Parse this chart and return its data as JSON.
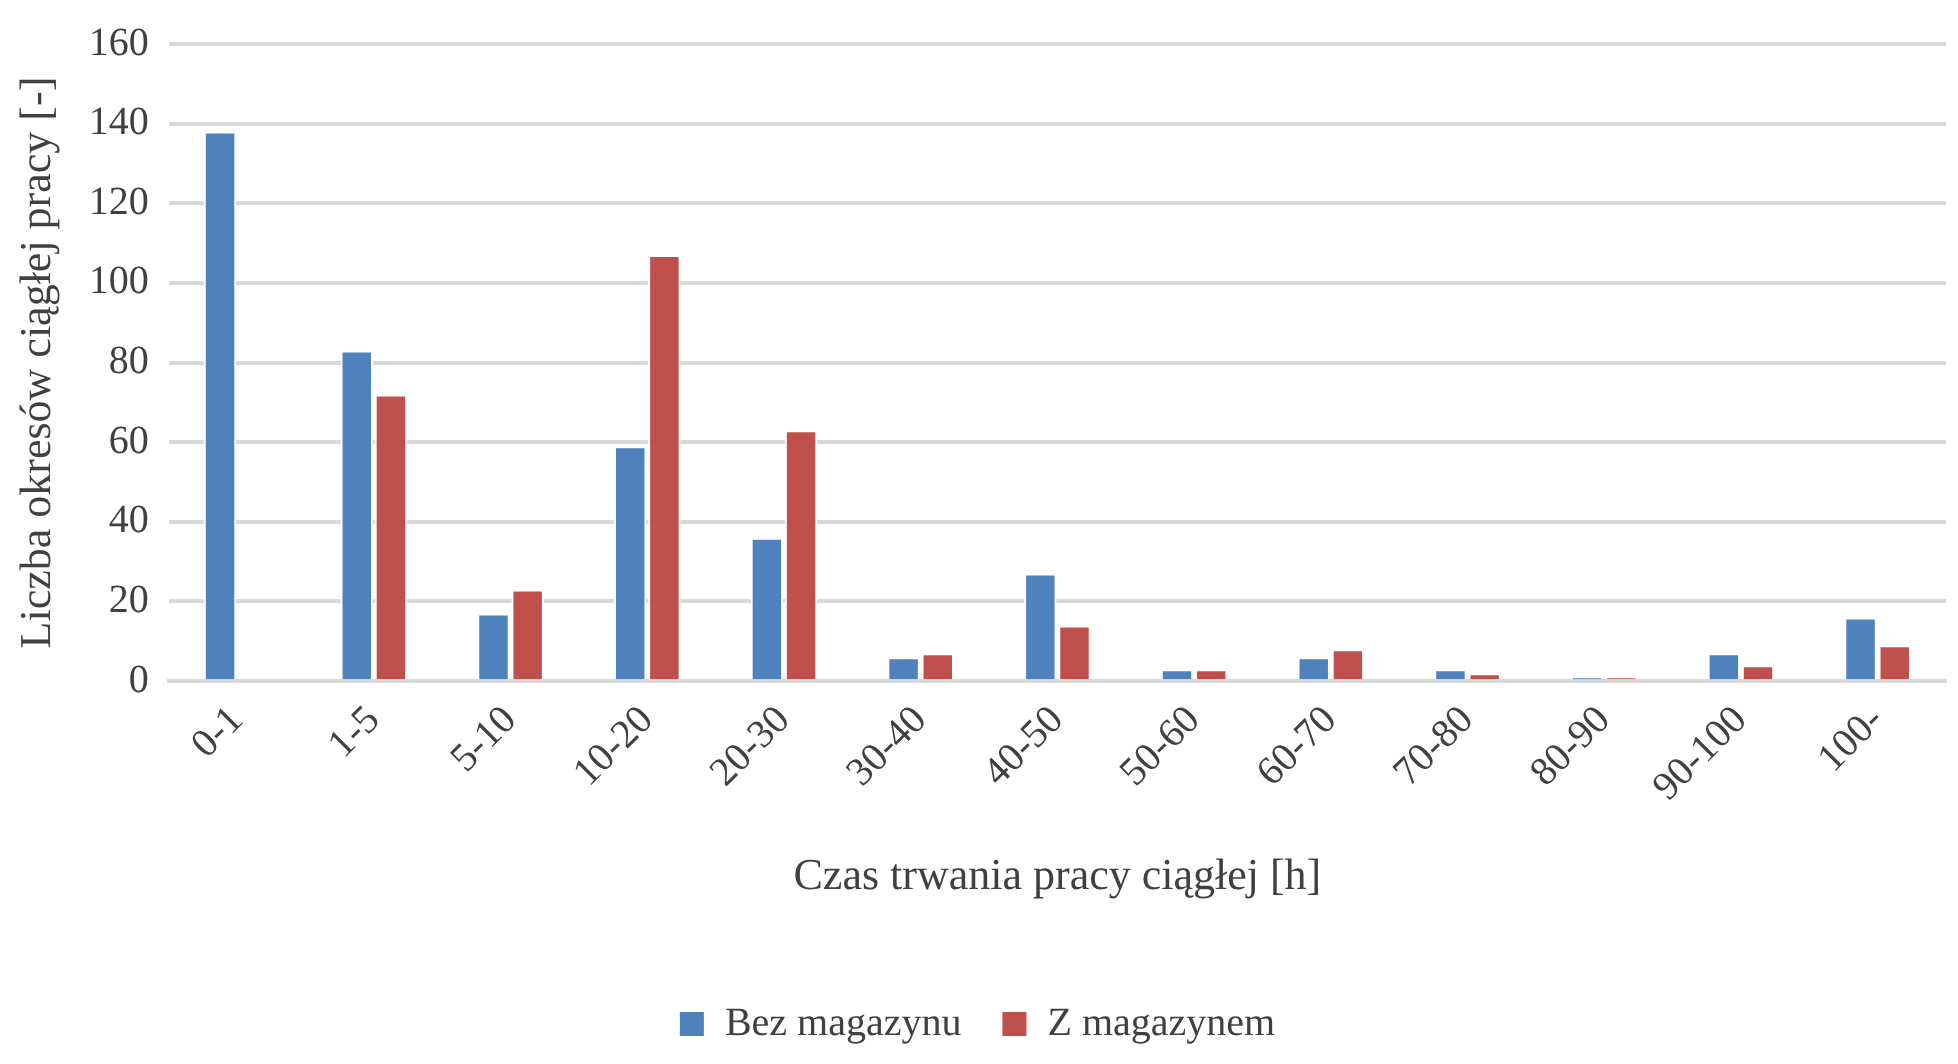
{
  "chart_data": {
    "type": "bar",
    "xlabel": "Czas trwania pracy ciągłej [h]",
    "ylabel": "Liczba okresów ciągłej pracy [-]",
    "categories": [
      "0-1",
      "1-5",
      "5-10",
      "10-20",
      "20-30",
      "30-40",
      "40-50",
      "50-60",
      "60-70",
      "70-80",
      "80-90",
      "90-100",
      "100-"
    ],
    "series": [
      {
        "name": "Bez magazynu",
        "color": "#4f81bd",
        "values": [
          138,
          83,
          17,
          59,
          36,
          6,
          27,
          3,
          6,
          3,
          1,
          7,
          16
        ]
      },
      {
        "name": "Z magazynem",
        "color": "#c0504d",
        "values": [
          0,
          72,
          23,
          107,
          63,
          7,
          14,
          3,
          8,
          2,
          1,
          4,
          9
        ]
      }
    ],
    "ylim": [
      0,
      160
    ],
    "yticks": [
      0,
      20,
      40,
      60,
      80,
      100,
      120,
      140,
      160
    ],
    "grid": "y",
    "legend": "bottom"
  }
}
